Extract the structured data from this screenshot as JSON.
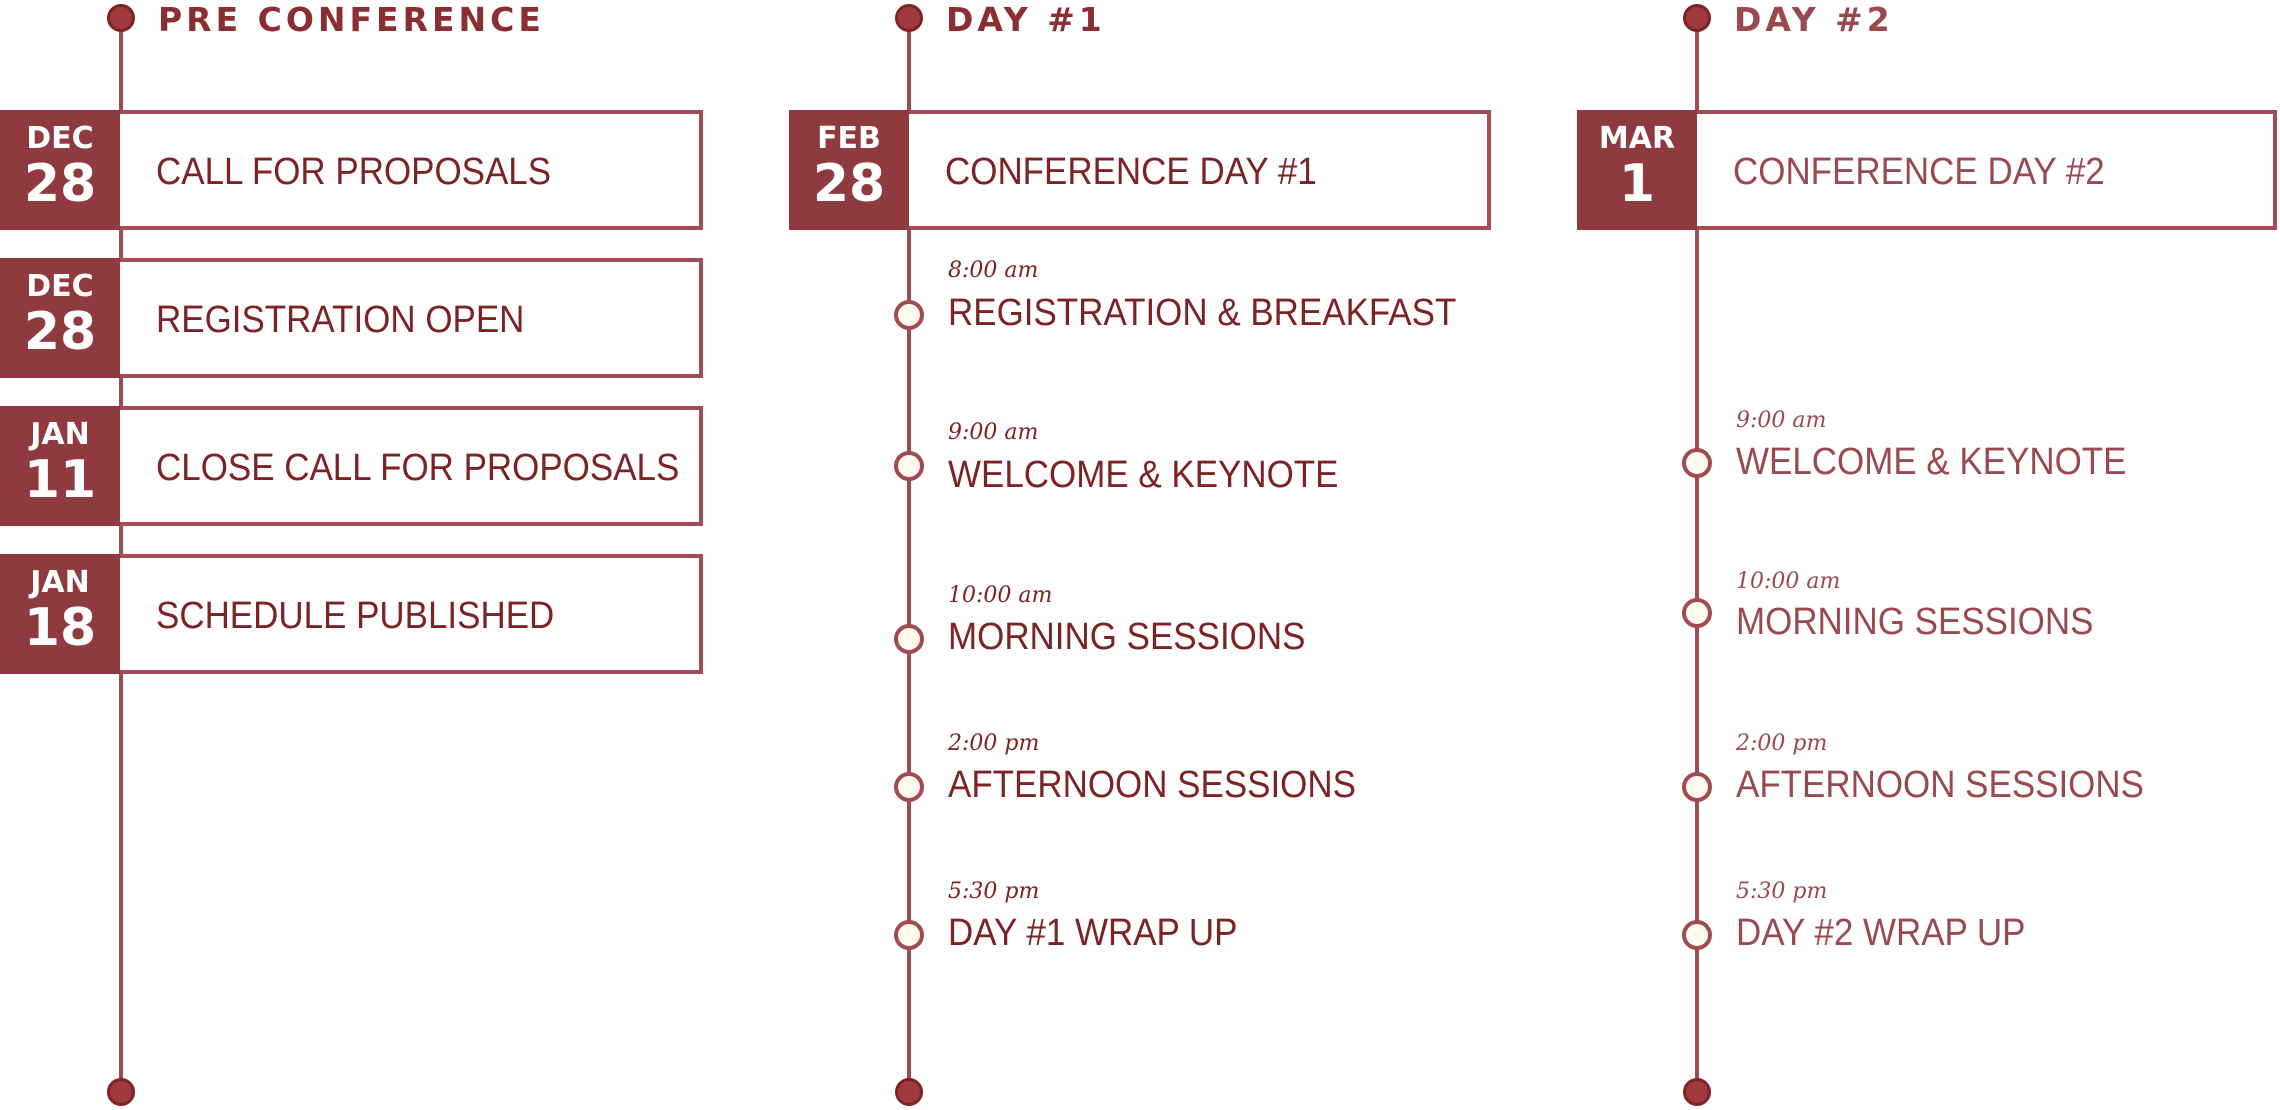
{
  "colors": {
    "primary": "#8f3a3f",
    "text": "#7d2323",
    "line": "#a04b4f",
    "background": "#ffffff"
  },
  "columns": [
    {
      "title": "PRE CONFERENCE",
      "cards": [
        {
          "month": "DEC",
          "day": "28",
          "label": "CALL FOR PROPOSALS"
        },
        {
          "month": "DEC",
          "day": "28",
          "label": "REGISTRATION OPEN"
        },
        {
          "month": "JAN",
          "day": "11",
          "label": "CLOSE CALL FOR PROPOSALS"
        },
        {
          "month": "JAN",
          "day": "18",
          "label": "SCHEDULE PUBLISHED"
        }
      ],
      "events": []
    },
    {
      "title": "DAY #1",
      "cards": [
        {
          "month": "FEB",
          "day": "28",
          "label": "CONFERENCE DAY #1"
        }
      ],
      "events": [
        {
          "time": "8:00 am",
          "label": "REGISTRATION & BREAKFAST"
        },
        {
          "time": "9:00 am",
          "label": "WELCOME & KEYNOTE"
        },
        {
          "time": "10:00 am",
          "label": "MORNING SESSIONS"
        },
        {
          "time": "2:00 pm",
          "label": "AFTERNOON SESSIONS"
        },
        {
          "time": "5:30 pm",
          "label": "DAY #1 WRAP UP"
        }
      ]
    },
    {
      "title": "DAY #2",
      "cards": [
        {
          "month": "MAR",
          "day": "1",
          "label": "CONFERENCE DAY #2"
        }
      ],
      "events": [
        {
          "time": "9:00 am",
          "label": "WELCOME & KEYNOTE"
        },
        {
          "time": "10:00 am",
          "label": "MORNING SESSIONS"
        },
        {
          "time": "2:00 pm",
          "label": "AFTERNOON SESSIONS"
        },
        {
          "time": "5:30 pm",
          "label": "DAY #2 WRAP UP"
        }
      ]
    }
  ]
}
